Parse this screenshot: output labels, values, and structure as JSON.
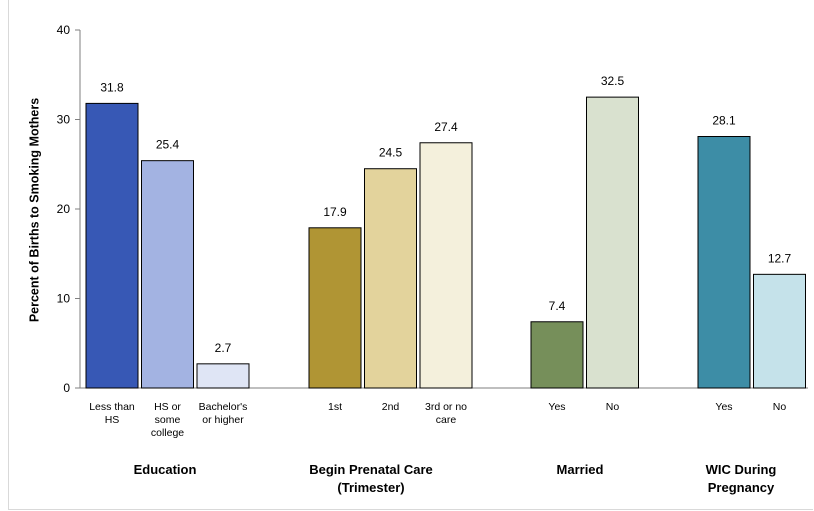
{
  "chart_data": {
    "type": "bar",
    "ylabel": "Percent of Births to Smoking Mothers",
    "ylim": [
      0,
      40
    ],
    "yticks": [
      0,
      10,
      20,
      30,
      40
    ],
    "grid": false,
    "groups": [
      {
        "label": [
          "Education"
        ],
        "bars": [
          {
            "category": [
              "Less than",
              "HS"
            ],
            "value": 31.8,
            "color": "#3758b5"
          },
          {
            "category": [
              "HS or",
              "some",
              "college"
            ],
            "value": 25.4,
            "color": "#a3b3e2"
          },
          {
            "category": [
              "Bachelor's",
              "or higher"
            ],
            "value": 2.7,
            "color": "#dfe5f5"
          }
        ]
      },
      {
        "label": [
          "Begin Prenatal Care",
          "(Trimester)"
        ],
        "bars": [
          {
            "category": [
              "1st"
            ],
            "value": 17.9,
            "color": "#b09534"
          },
          {
            "category": [
              "2nd"
            ],
            "value": 24.5,
            "color": "#e3d39c"
          },
          {
            "category": [
              "3rd or no",
              "care"
            ],
            "value": 27.4,
            "color": "#f4f0dc"
          }
        ]
      },
      {
        "label": [
          "Married"
        ],
        "bars": [
          {
            "category": [
              "Yes"
            ],
            "value": 7.4,
            "color": "#768f5a"
          },
          {
            "category": [
              "No"
            ],
            "value": 32.5,
            "color": "#d9e1cf"
          }
        ]
      },
      {
        "label": [
          "WIC During",
          "Pregnancy"
        ],
        "bars": [
          {
            "category": [
              "Yes"
            ],
            "value": 28.1,
            "color": "#3d8da6"
          },
          {
            "category": [
              "No"
            ],
            "value": 12.7,
            "color": "#c5e2ea"
          }
        ]
      }
    ]
  }
}
